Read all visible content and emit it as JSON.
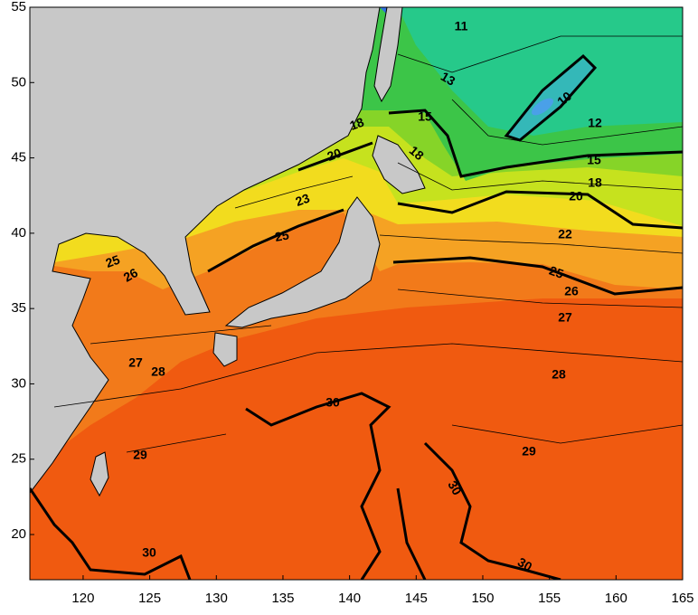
{
  "map": {
    "xlim": [
      116,
      165
    ],
    "ylim": [
      17,
      55
    ],
    "xticks": [
      120,
      125,
      130,
      135,
      140,
      145,
      150,
      155,
      160,
      165
    ],
    "yticks": [
      20,
      25,
      30,
      35,
      40,
      45,
      50,
      55
    ],
    "contour_labels": [
      "11",
      "13",
      "10",
      "12",
      "15",
      "15",
      "18",
      "18",
      "18",
      "20",
      "20",
      "23",
      "22",
      "25",
      "25",
      "26",
      "25",
      "26",
      "27",
      "27",
      "28",
      "28",
      "29",
      "29",
      "30",
      "30",
      "30",
      "30"
    ]
  }
}
